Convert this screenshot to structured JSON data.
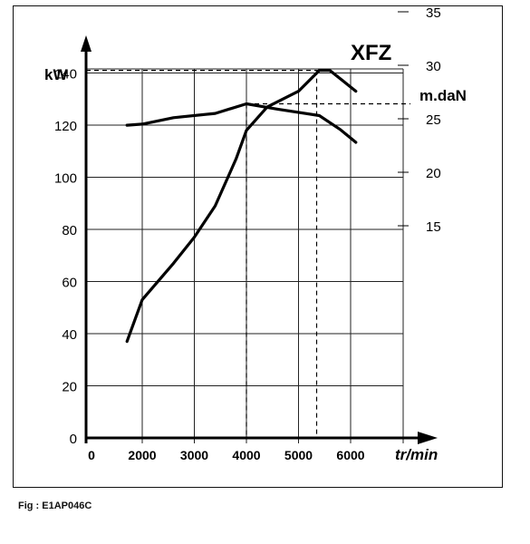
{
  "chart_data": {
    "type": "line",
    "title": "XFZ",
    "xlabel": "tr/min",
    "ylabel": "kW",
    "y2label": "m.daN",
    "xlim": [
      0,
      7000
    ],
    "ylim": [
      0,
      150
    ],
    "x_ticks": [
      "0",
      "2000",
      "3000",
      "4000",
      "5000",
      "6000"
    ],
    "y_ticks": [
      "0",
      "20",
      "40",
      "60",
      "80",
      "100",
      "120",
      "140"
    ],
    "y2_ticks": [
      "15",
      "20",
      "25",
      "30",
      "35"
    ],
    "grid": true,
    "series": [
      {
        "name": "",
        "axis": "kW",
        "x": [
          1400,
          2000,
          2600,
          3000,
          3400,
          3800,
          4000,
          4400,
          5000,
          5400,
          5600,
          6100
        ],
        "y": [
          37,
          53,
          67,
          77,
          89,
          107,
          118,
          127,
          133,
          141,
          141,
          133
        ]
      },
      {
        "name": "",
        "axis": "m.daN",
        "x": [
          1400,
          2000,
          2600,
          3400,
          4000,
          4600,
          5400,
          5800,
          6100
        ],
        "y": [
          24.4,
          24.5,
          25.1,
          25.5,
          26.4,
          25.9,
          25.3,
          24.0,
          22.8
        ]
      }
    ]
  },
  "caption": "Fig : E1AP046C"
}
